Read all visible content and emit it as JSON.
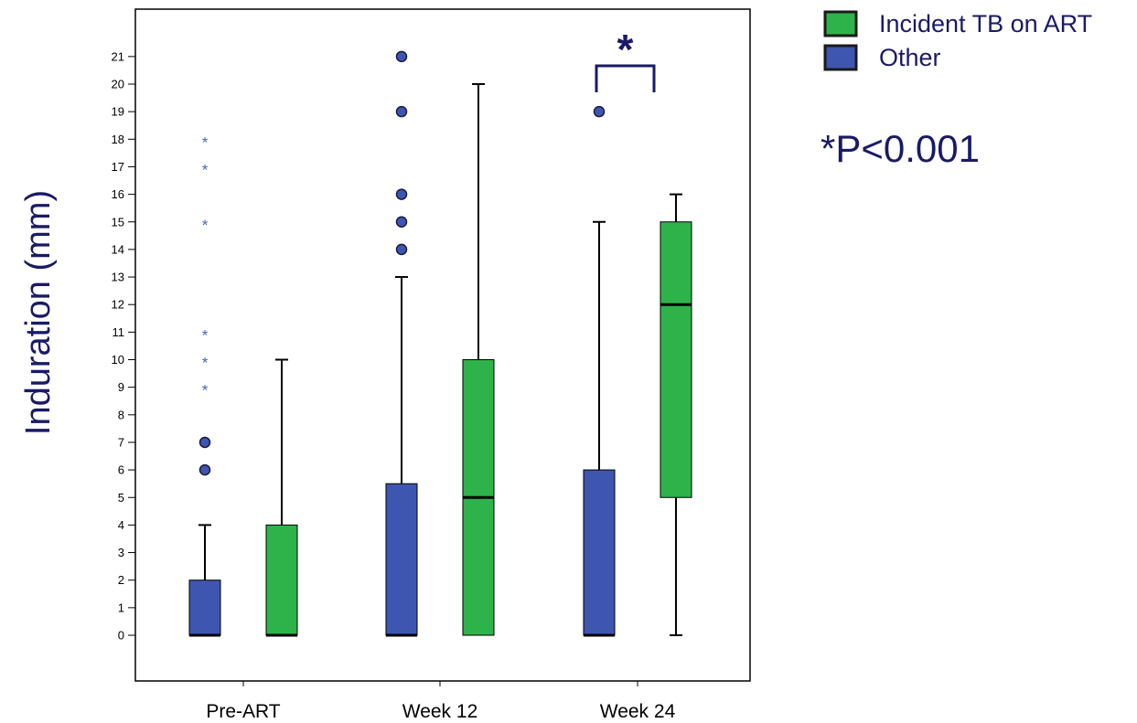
{
  "chart_data": {
    "type": "boxplot",
    "title": "",
    "xlabel": "",
    "ylabel": "Induration (mm)",
    "ylim": [
      -2,
      23
    ],
    "yticks": [
      0,
      1,
      2,
      3,
      4,
      5,
      6,
      7,
      8,
      9,
      10,
      11,
      12,
      13,
      14,
      15,
      16,
      17,
      18,
      19,
      20,
      21
    ],
    "categories": [
      "Pre-ART",
      "Week 12",
      "Week 24"
    ],
    "series": [
      {
        "name": "Other",
        "color": "#3f56b0",
        "boxes": [
          {
            "category": "Pre-ART",
            "whisker_low": 0,
            "q1": 0,
            "median": 0,
            "q3": 2,
            "whisker_high": 4,
            "outliers": [
              6,
              7
            ],
            "extremes": [
              9,
              10,
              11,
              15,
              17,
              18
            ]
          },
          {
            "category": "Week 12",
            "whisker_low": 0,
            "q1": 0,
            "median": 0,
            "q3": 5.5,
            "whisker_high": 13,
            "outliers": [
              14,
              15,
              16,
              19,
              21
            ],
            "extremes": []
          },
          {
            "category": "Week 24",
            "whisker_low": 0,
            "q1": 0,
            "median": 0,
            "q3": 6,
            "whisker_high": 15,
            "outliers": [
              19
            ],
            "extremes": []
          }
        ]
      },
      {
        "name": "Incident TB on ART",
        "color": "#2db34a",
        "boxes": [
          {
            "category": "Pre-ART",
            "whisker_low": 0,
            "q1": 0,
            "median": 0,
            "q3": 4,
            "whisker_high": 10,
            "outliers": [],
            "extremes": []
          },
          {
            "category": "Week 12",
            "whisker_low": 0,
            "q1": 0,
            "median": 5,
            "q3": 10,
            "whisker_high": 20,
            "outliers": [],
            "extremes": []
          },
          {
            "category": "Week 24",
            "whisker_low": 0,
            "q1": 5,
            "median": 12,
            "q3": 15,
            "whisker_high": 16,
            "outliers": [],
            "extremes": []
          }
        ]
      }
    ],
    "legend": {
      "placement": "top-right",
      "entries": [
        {
          "label": "Incident TB on ART",
          "color": "#2db34a"
        },
        {
          "label": "Other",
          "color": "#3f56b0"
        }
      ]
    },
    "annotations": {
      "significance_marker": "*",
      "significance_category": "Week 24",
      "pvalue_text": "*P<0.001",
      "extreme_marker": "*"
    },
    "colors": {
      "text": "#1a1a66",
      "frame": "#000000"
    }
  }
}
